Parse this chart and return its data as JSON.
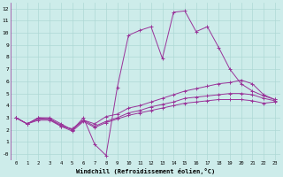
{
  "xlabel": "Windchill (Refroidissement éolien,°C)",
  "background_color": "#cdecea",
  "grid_color": "#aed8d5",
  "line_color": "#993399",
  "xlim": [
    -0.5,
    23.5
  ],
  "ylim": [
    -0.5,
    12.5
  ],
  "xticks": [
    0,
    1,
    2,
    3,
    4,
    5,
    6,
    7,
    8,
    9,
    10,
    11,
    12,
    13,
    14,
    15,
    16,
    17,
    18,
    19,
    20,
    21,
    22,
    23
  ],
  "yticks": [
    0,
    1,
    2,
    3,
    4,
    5,
    6,
    7,
    8,
    9,
    10,
    11,
    12
  ],
  "ytick_labels": [
    "-0",
    "1",
    "2",
    "3",
    "4",
    "5",
    "6",
    "7",
    "8",
    "9",
    "10",
    "11",
    "12"
  ],
  "series1_x": [
    0,
    1,
    2,
    3,
    4,
    5,
    6,
    7,
    8,
    9,
    10,
    11,
    12,
    13,
    14,
    15,
    16,
    17,
    18,
    19,
    20,
    21,
    22,
    23
  ],
  "series1_y": [
    3.0,
    2.5,
    3.0,
    3.0,
    2.5,
    2.0,
    3.0,
    0.8,
    -0.1,
    5.5,
    9.8,
    10.2,
    10.5,
    7.9,
    11.7,
    11.8,
    10.1,
    10.5,
    8.8,
    7.0,
    5.8,
    5.2,
    4.8,
    4.5
  ],
  "series2_x": [
    0,
    1,
    2,
    3,
    4,
    5,
    6,
    7,
    8,
    9,
    10,
    11,
    12,
    13,
    14,
    15,
    16,
    17,
    18,
    19,
    20,
    21,
    22,
    23
  ],
  "series2_y": [
    3.0,
    2.5,
    3.0,
    2.9,
    2.3,
    2.1,
    2.8,
    2.5,
    3.1,
    3.3,
    3.8,
    4.0,
    4.3,
    4.6,
    4.9,
    5.2,
    5.4,
    5.6,
    5.8,
    5.9,
    6.1,
    5.8,
    4.9,
    4.5
  ],
  "series3_x": [
    0,
    1,
    2,
    3,
    4,
    5,
    6,
    7,
    8,
    9,
    10,
    11,
    12,
    13,
    14,
    15,
    16,
    17,
    18,
    19,
    20,
    21,
    22,
    23
  ],
  "series3_y": [
    3.0,
    2.5,
    2.8,
    2.8,
    2.3,
    1.9,
    2.7,
    2.2,
    2.6,
    2.9,
    3.2,
    3.4,
    3.6,
    3.8,
    4.0,
    4.2,
    4.3,
    4.4,
    4.5,
    4.5,
    4.5,
    4.4,
    4.2,
    4.3
  ],
  "series4_x": [
    0,
    1,
    2,
    3,
    4,
    5,
    6,
    7,
    8,
    9,
    10,
    11,
    12,
    13,
    14,
    15,
    16,
    17,
    18,
    19,
    20,
    21,
    22,
    23
  ],
  "series4_y": [
    3.0,
    2.5,
    2.9,
    2.9,
    2.4,
    2.0,
    2.8,
    2.3,
    2.7,
    3.0,
    3.4,
    3.6,
    3.9,
    4.1,
    4.3,
    4.6,
    4.7,
    4.8,
    4.9,
    5.0,
    5.0,
    4.9,
    4.6,
    4.4
  ]
}
